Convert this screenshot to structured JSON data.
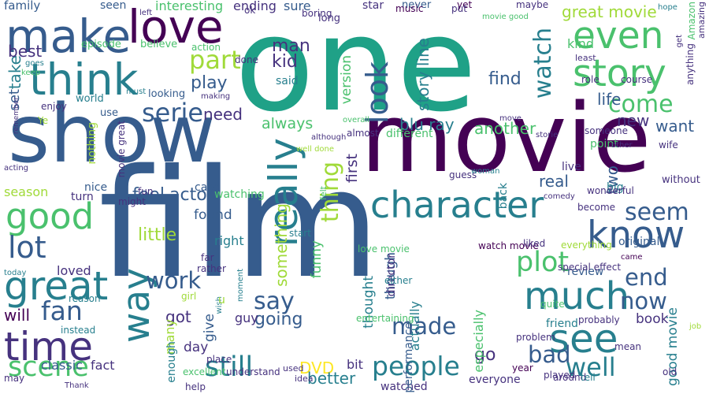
{
  "palette": {
    "viridis_0": "#440154",
    "viridis_1": "#46327e",
    "viridis_2": "#365c8d",
    "viridis_3": "#277f8e",
    "viridis_4": "#1fa187",
    "viridis_5": "#4ac16d",
    "viridis_6": "#a0da39",
    "viridis_7": "#fde725",
    "background": "#ffffff"
  },
  "words": [
    {
      "text": "film",
      "color": "#365c8d"
    },
    {
      "text": "one",
      "color": "#1fa187"
    },
    {
      "text": "movie",
      "color": "#440154"
    },
    {
      "text": "show",
      "color": "#365c8d"
    },
    {
      "text": "make",
      "color": "#365c8d"
    },
    {
      "text": "love",
      "color": "#440154"
    },
    {
      "text": "think",
      "color": "#277f8e"
    },
    {
      "text": "even",
      "color": "#4ac16d"
    },
    {
      "text": "story",
      "color": "#4ac16d"
    },
    {
      "text": "good",
      "color": "#4ac16d"
    },
    {
      "text": "character",
      "color": "#277f8e"
    },
    {
      "text": "much",
      "color": "#277f8e"
    },
    {
      "text": "see",
      "color": "#277f8e"
    },
    {
      "text": "time",
      "color": "#46327e"
    },
    {
      "text": "great",
      "color": "#277f8e"
    },
    {
      "text": "really",
      "color": "#277f8e"
    },
    {
      "text": "way",
      "color": "#277f8e"
    },
    {
      "text": "know",
      "color": "#365c8d"
    },
    {
      "text": "scene",
      "color": "#4ac16d"
    },
    {
      "text": "still",
      "color": "#277f8e"
    },
    {
      "text": "people",
      "color": "#277f8e"
    },
    {
      "text": "well",
      "color": "#277f8e"
    },
    {
      "text": "lot",
      "color": "#365c8d"
    },
    {
      "text": "part",
      "color": "#a0da39"
    },
    {
      "text": "serie",
      "color": "#365c8d"
    },
    {
      "text": "look",
      "color": "#365c8d"
    },
    {
      "text": "watch",
      "color": "#277f8e"
    },
    {
      "text": "thing",
      "color": "#a0da39"
    },
    {
      "text": "come",
      "color": "#4ac16d"
    },
    {
      "text": "seem",
      "color": "#365c8d"
    },
    {
      "text": "plot",
      "color": "#4ac16d"
    },
    {
      "text": "end",
      "color": "#365c8d"
    },
    {
      "text": "now",
      "color": "#365c8d"
    },
    {
      "text": "work",
      "color": "#365c8d"
    },
    {
      "text": "say",
      "color": "#365c8d"
    },
    {
      "text": "fan",
      "color": "#365c8d"
    },
    {
      "text": "made",
      "color": "#365c8d"
    },
    {
      "text": "bad",
      "color": "#365c8d"
    },
    {
      "text": "man",
      "color": "#46327e"
    },
    {
      "text": "kid",
      "color": "#46327e"
    },
    {
      "text": "take",
      "color": "#277f8e"
    },
    {
      "text": "best",
      "color": "#46327e"
    },
    {
      "text": "play",
      "color": "#365c8d"
    },
    {
      "text": "great movie",
      "color": "#a0da39"
    },
    {
      "text": "blu ray",
      "color": "#277f8e"
    },
    {
      "text": "story line",
      "color": "#277f8e"
    },
    {
      "text": "life",
      "color": "#365c8d"
    },
    {
      "text": "find",
      "color": "#365c8d"
    },
    {
      "text": "new",
      "color": "#46327e"
    },
    {
      "text": "want",
      "color": "#365c8d"
    },
    {
      "text": "another",
      "color": "#4ac16d"
    },
    {
      "text": "always",
      "color": "#4ac16d"
    },
    {
      "text": "version",
      "color": "#4ac16d"
    },
    {
      "text": "set",
      "color": "#365c8d"
    },
    {
      "text": "need",
      "color": "#46327e"
    },
    {
      "text": "feel",
      "color": "#365c8d"
    },
    {
      "text": "actor",
      "color": "#365c8d"
    },
    {
      "text": "found",
      "color": "#365c8d"
    },
    {
      "text": "little",
      "color": "#a0da39"
    },
    {
      "text": "first",
      "color": "#46327e"
    },
    {
      "text": "real",
      "color": "#365c8d"
    },
    {
      "text": "two",
      "color": "#365c8d"
    },
    {
      "text": "something",
      "color": "#a0da39"
    },
    {
      "text": "funny",
      "color": "#4ac16d"
    },
    {
      "text": "though",
      "color": "#365c8d"
    },
    {
      "text": "thought",
      "color": "#277f8e"
    },
    {
      "text": "going",
      "color": "#365c8d"
    },
    {
      "text": "got",
      "color": "#46327e"
    },
    {
      "text": "will",
      "color": "#440154"
    },
    {
      "text": "give",
      "color": "#365c8d"
    },
    {
      "text": "many",
      "color": "#a0da39"
    },
    {
      "text": "DVD",
      "color": "#fde725"
    },
    {
      "text": "better",
      "color": "#277f8e"
    },
    {
      "text": "book",
      "color": "#46327e"
    },
    {
      "text": "good movie",
      "color": "#277f8e"
    },
    {
      "text": "go",
      "color": "#46327e"
    },
    {
      "text": "day",
      "color": "#46327e"
    },
    {
      "text": "season",
      "color": "#a0da39"
    },
    {
      "text": "loved",
      "color": "#46327e"
    },
    {
      "text": "enough",
      "color": "#277f8e"
    },
    {
      "text": "fact",
      "color": "#46327e"
    },
    {
      "text": "classic",
      "color": "#365c8d"
    },
    {
      "text": "bit",
      "color": "#46327e"
    },
    {
      "text": "watched",
      "color": "#46327e"
    },
    {
      "text": "everyone",
      "color": "#46327e"
    },
    {
      "text": "right",
      "color": "#277f8e"
    },
    {
      "text": "guy",
      "color": "#46327e"
    },
    {
      "text": "actually",
      "color": "#277f8e"
    },
    {
      "text": "especially",
      "color": "#4ac16d"
    },
    {
      "text": "original",
      "color": "#365c8d"
    },
    {
      "text": "point",
      "color": "#4ac16d"
    },
    {
      "text": "review",
      "color": "#365c8d"
    },
    {
      "text": "friend",
      "color": "#277f8e"
    },
    {
      "text": "kind",
      "color": "#4ac16d"
    },
    {
      "text": "sure",
      "color": "#365c8d"
    },
    {
      "text": "star",
      "color": "#46327e"
    },
    {
      "text": "family",
      "color": "#365c8d"
    },
    {
      "text": "seen",
      "color": "#365c8d"
    },
    {
      "text": "interesting",
      "color": "#4ac16d"
    },
    {
      "text": "ending",
      "color": "#46327e"
    },
    {
      "text": "episode",
      "color": "#4ac16d"
    },
    {
      "text": "believe",
      "color": "#4ac16d"
    },
    {
      "text": "long",
      "color": "#46327e"
    },
    {
      "text": "never",
      "color": "#365c8d"
    },
    {
      "text": "maybe",
      "color": "#46327e"
    },
    {
      "text": "problem",
      "color": "#46327e"
    },
    {
      "text": "world",
      "color": "#277f8e"
    },
    {
      "text": "use",
      "color": "#365c8d"
    },
    {
      "text": "looking",
      "color": "#365c8d"
    },
    {
      "text": "must",
      "color": "#277f8e"
    },
    {
      "text": "said",
      "color": "#277f8e"
    },
    {
      "text": "performance",
      "color": "#365c8d"
    },
    {
      "text": "almost",
      "color": "#46327e"
    },
    {
      "text": "different",
      "color": "#4ac16d"
    },
    {
      "text": "music",
      "color": "#440154"
    },
    {
      "text": "yet",
      "color": "#440154"
    },
    {
      "text": "put",
      "color": "#46327e"
    },
    {
      "text": "role",
      "color": "#46327e"
    },
    {
      "text": "course",
      "color": "#46327e"
    },
    {
      "text": "least",
      "color": "#46327e"
    },
    {
      "text": "someone",
      "color": "#46327e"
    },
    {
      "text": "wife",
      "color": "#46327e"
    },
    {
      "text": "live",
      "color": "#46327e"
    },
    {
      "text": "guess",
      "color": "#46327e"
    },
    {
      "text": "woman",
      "color": "#277f8e"
    },
    {
      "text": "director",
      "color": "#46327e"
    },
    {
      "text": "back",
      "color": "#277f8e"
    },
    {
      "text": "either",
      "color": "#277f8e"
    },
    {
      "text": "entertaining",
      "color": "#4ac16d"
    },
    {
      "text": "without",
      "color": "#46327e"
    },
    {
      "text": "big",
      "color": "#277f8e"
    },
    {
      "text": "become",
      "color": "#46327e"
    },
    {
      "text": "watching",
      "color": "#4ac16d"
    },
    {
      "text": "felt",
      "color": "#4ac16d"
    },
    {
      "text": "turn",
      "color": "#46327e"
    },
    {
      "text": "fun",
      "color": "#46327e"
    },
    {
      "text": "might",
      "color": "#46327e"
    },
    {
      "text": "case",
      "color": "#365c8d"
    },
    {
      "text": "nice",
      "color": "#365c8d"
    },
    {
      "text": "nothing",
      "color": "#a0da39"
    },
    {
      "text": "enjoy",
      "color": "#46327e"
    },
    {
      "text": "remember",
      "color": "#46327e"
    },
    {
      "text": "acting",
      "color": "#46327e"
    },
    {
      "text": "start",
      "color": "#277f8e"
    },
    {
      "text": "love movie",
      "color": "#4ac16d"
    },
    {
      "text": "watch movie",
      "color": "#440154"
    },
    {
      "text": "liked",
      "color": "#46327e"
    },
    {
      "text": "everything",
      "color": "#a0da39"
    },
    {
      "text": "special effect",
      "color": "#46327e"
    },
    {
      "text": "came",
      "color": "#440154"
    },
    {
      "text": "quite",
      "color": "#4ac16d"
    },
    {
      "text": "probably",
      "color": "#46327e"
    },
    {
      "text": "year",
      "color": "#440154"
    },
    {
      "text": "played",
      "color": "#46327e"
    },
    {
      "text": "mean",
      "color": "#46327e"
    },
    {
      "text": "around",
      "color": "#46327e"
    },
    {
      "text": "tell",
      "color": "#277f8e"
    },
    {
      "text": "old",
      "color": "#46327e"
    },
    {
      "text": "understand",
      "color": "#46327e"
    },
    {
      "text": "excellent",
      "color": "#4ac16d"
    },
    {
      "text": "place",
      "color": "#46327e"
    },
    {
      "text": "help",
      "color": "#46327e"
    },
    {
      "text": "used",
      "color": "#46327e"
    },
    {
      "text": "idea",
      "color": "#46327e"
    },
    {
      "text": "Thank",
      "color": "#46327e"
    },
    {
      "text": "may",
      "color": "#46327e"
    },
    {
      "text": "instead",
      "color": "#277f8e"
    },
    {
      "text": "reason",
      "color": "#277f8e"
    },
    {
      "text": "today",
      "color": "#277f8e"
    },
    {
      "text": "far",
      "color": "#46327e"
    },
    {
      "text": "rather",
      "color": "#46327e"
    },
    {
      "text": "wish",
      "color": "#277f8e"
    },
    {
      "text": "moment",
      "color": "#277f8e"
    },
    {
      "text": "girl",
      "color": "#a0da39"
    },
    {
      "text": "u",
      "color": "#a0da39"
    },
    {
      "text": "goes",
      "color": "#277f8e"
    },
    {
      "text": "keep",
      "color": "#4ac16d"
    },
    {
      "text": "Ye",
      "color": "#a0da39"
    },
    {
      "text": "making",
      "color": "#46327e"
    },
    {
      "text": "action",
      "color": "#4ac16d"
    },
    {
      "text": "done",
      "color": "#46327e"
    },
    {
      "text": "ok",
      "color": "#46327e"
    },
    {
      "text": "boring",
      "color": "#46327e"
    },
    {
      "text": "left",
      "color": "#46327e"
    },
    {
      "text": "movie good",
      "color": "#4ac16d"
    },
    {
      "text": "movie great",
      "color": "#46327e"
    },
    {
      "text": "although",
      "color": "#46327e"
    },
    {
      "text": "well done",
      "color": "#a0da39"
    },
    {
      "text": "overall",
      "color": "#4ac16d"
    },
    {
      "text": "move",
      "color": "#46327e"
    },
    {
      "text": "storie",
      "color": "#46327e"
    },
    {
      "text": "comedy",
      "color": "#46327e"
    },
    {
      "text": "other",
      "color": "#46327e"
    },
    {
      "text": "Amazon",
      "color": "#4ac16d"
    },
    {
      "text": "amazing",
      "color": "#46327e"
    },
    {
      "text": "anything",
      "color": "#46327e"
    },
    {
      "text": "wonderful",
      "color": "#46327e"
    },
    {
      "text": "job",
      "color": "#a0da39"
    },
    {
      "text": "get",
      "color": "#46327e"
    },
    {
      "text": "hope",
      "color": "#277f8e"
    },
    {
      "text": "must see",
      "color": "#46327e"
    },
    {
      "text": "hell",
      "color": "#46327e"
    }
  ]
}
